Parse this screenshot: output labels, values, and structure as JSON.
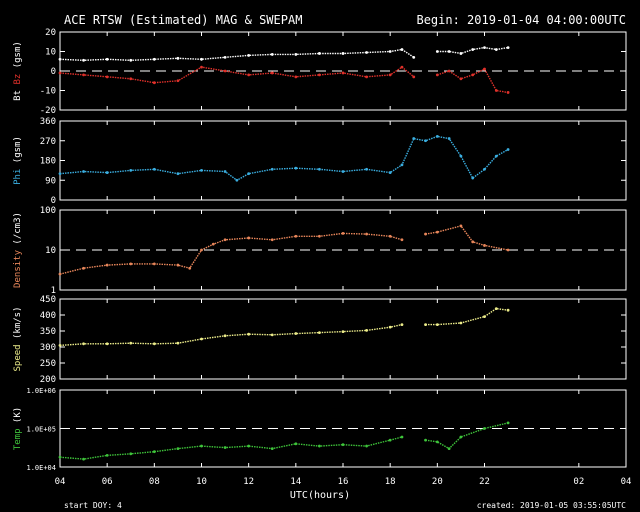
{
  "header": {
    "title": "ACE RTSW (Estimated) MAG & SWEPAM",
    "begin": "Begin: 2019-01-04 04:00:00UTC"
  },
  "footer": {
    "start_doy": "start DOY:   4",
    "created": "created: 2019-01-05 03:55:05UTC"
  },
  "colors": {
    "background": "#000000",
    "axes": "#ffffff",
    "bt": "#ffffff",
    "bz": "#e0302a",
    "phi": "#3aaee0",
    "density": "#e8865a",
    "speed": "#ecec8a",
    "temp": "#3ec43a"
  },
  "chart_data": [
    {
      "type": "scatter",
      "panel": "mag",
      "ylabel": "Bt Bz (gsm)",
      "ylabel_parts": [
        "Bt",
        "Bz",
        "(gsm)"
      ],
      "yticks": [
        "20",
        "10",
        "0",
        "-10",
        "-20"
      ],
      "ytick_values": [
        20,
        10,
        0,
        -10,
        -20
      ],
      "ylim": [
        -20,
        20
      ],
      "reference_line": 0,
      "xlim": [
        4,
        28
      ],
      "series": [
        {
          "name": "Bt",
          "color": "#ffffff",
          "x": [
            4,
            5,
            6,
            7,
            8,
            9,
            10,
            11,
            12,
            13,
            14,
            15,
            16,
            17,
            18,
            18.5,
            19,
            19.5,
            20,
            20.5,
            21,
            21.5,
            22,
            22.5,
            23
          ],
          "y": [
            6,
            5.5,
            6,
            5.5,
            6,
            6.5,
            6,
            7,
            8,
            8.5,
            8.5,
            9,
            9,
            9.5,
            10,
            11,
            7,
            null,
            10,
            10,
            9,
            11,
            12,
            11,
            12
          ]
        },
        {
          "name": "Bz",
          "color": "#e0302a",
          "x": [
            4,
            5,
            6,
            7,
            8,
            9,
            10,
            11,
            12,
            13,
            14,
            15,
            16,
            17,
            18,
            18.5,
            19,
            19.5,
            20,
            20.5,
            21,
            21.5,
            22,
            22.5,
            23
          ],
          "y": [
            -1,
            -2,
            -3,
            -4,
            -6,
            -5,
            2,
            0,
            -2,
            -1,
            -3,
            -2,
            -1,
            -3,
            -2,
            2,
            -3,
            null,
            -2,
            0,
            -4,
            -2,
            1,
            -10,
            -11
          ]
        }
      ]
    },
    {
      "type": "scatter",
      "panel": "phi",
      "ylabel": "Phi (gsm)",
      "yticks": [
        "360",
        "270",
        "180",
        "90",
        "0"
      ],
      "ytick_values": [
        360,
        270,
        180,
        90,
        0
      ],
      "ylim": [
        0,
        360
      ],
      "xlim": [
        4,
        28
      ],
      "series": [
        {
          "name": "Phi",
          "color": "#3aaee0",
          "x": [
            4,
            5,
            6,
            7,
            8,
            9,
            10,
            11,
            11.5,
            12,
            13,
            14,
            15,
            16,
            17,
            18,
            18.5,
            19,
            19.5,
            20,
            20.5,
            21,
            21.5,
            22,
            22.5,
            23
          ],
          "y": [
            120,
            130,
            125,
            135,
            140,
            120,
            135,
            130,
            90,
            120,
            140,
            145,
            140,
            130,
            140,
            125,
            160,
            280,
            270,
            290,
            280,
            200,
            100,
            140,
            200,
            230
          ]
        }
      ]
    },
    {
      "type": "scatter",
      "panel": "density",
      "ylabel": "Density (/cm3)",
      "yscale": "log",
      "yticks": [
        "100",
        "10",
        "1"
      ],
      "ytick_values": [
        100,
        10,
        1
      ],
      "ylim": [
        1,
        100
      ],
      "reference_line": 10,
      "xlim": [
        4,
        28
      ],
      "series": [
        {
          "name": "Density",
          "color": "#e8865a",
          "x": [
            4,
            5,
            6,
            7,
            8,
            9,
            9.5,
            10,
            10.5,
            11,
            12,
            13,
            14,
            15,
            16,
            17,
            18,
            18.5,
            19,
            19.5,
            20,
            21,
            21.5,
            22,
            23
          ],
          "y": [
            2.5,
            3.5,
            4.2,
            4.5,
            4.5,
            4.2,
            3.5,
            10,
            14,
            18,
            20,
            18,
            22,
            22,
            26,
            25,
            22,
            18,
            null,
            25,
            28,
            40,
            16,
            13,
            10
          ]
        }
      ]
    },
    {
      "type": "scatter",
      "panel": "speed",
      "ylabel": "Speed (km/s)",
      "yticks": [
        "450",
        "400",
        "350",
        "300",
        "250",
        "200"
      ],
      "ytick_values": [
        450,
        400,
        350,
        300,
        250,
        200
      ],
      "ylim": [
        200,
        450
      ],
      "xlim": [
        4,
        28
      ],
      "series": [
        {
          "name": "Speed",
          "color": "#ecec8a",
          "x": [
            4,
            5,
            6,
            7,
            8,
            9,
            10,
            11,
            12,
            13,
            14,
            15,
            16,
            17,
            18,
            18.5,
            19,
            19.5,
            20,
            21,
            22,
            22.5,
            23
          ],
          "y": [
            305,
            310,
            310,
            312,
            310,
            312,
            325,
            335,
            340,
            338,
            342,
            345,
            348,
            352,
            362,
            370,
            null,
            370,
            370,
            375,
            395,
            420,
            415
          ]
        }
      ]
    },
    {
      "type": "scatter",
      "panel": "temp",
      "ylabel": "Temp (K)",
      "yscale": "log",
      "yticks": [
        "1.0E+06",
        "1.0E+05",
        "1.0E+04"
      ],
      "ytick_values": [
        1000000,
        100000,
        10000
      ],
      "ylim": [
        10000,
        1000000
      ],
      "reference_line": 100000,
      "xlim": [
        4,
        28
      ],
      "series": [
        {
          "name": "Temp",
          "color": "#3ec43a",
          "x": [
            4,
            5,
            6,
            7,
            8,
            9,
            10,
            11,
            12,
            13,
            14,
            15,
            16,
            17,
            18,
            18.5,
            19,
            19.5,
            20,
            20.5,
            21,
            22,
            23
          ],
          "y": [
            18000,
            16000,
            20000,
            22000,
            25000,
            30000,
            35000,
            32000,
            35000,
            30000,
            40000,
            35000,
            38000,
            35000,
            50000,
            60000,
            null,
            50000,
            45000,
            30000,
            60000,
            100000,
            140000
          ]
        }
      ]
    }
  ],
  "x_axis": {
    "label": "UTC(hours)",
    "tick_labels": [
      "04",
      "06",
      "08",
      "10",
      "12",
      "14",
      "16",
      "18",
      "20",
      "22",
      "02",
      "04"
    ],
    "tick_hours": [
      4,
      6,
      8,
      10,
      12,
      14,
      16,
      18,
      20,
      22,
      26,
      28
    ]
  }
}
